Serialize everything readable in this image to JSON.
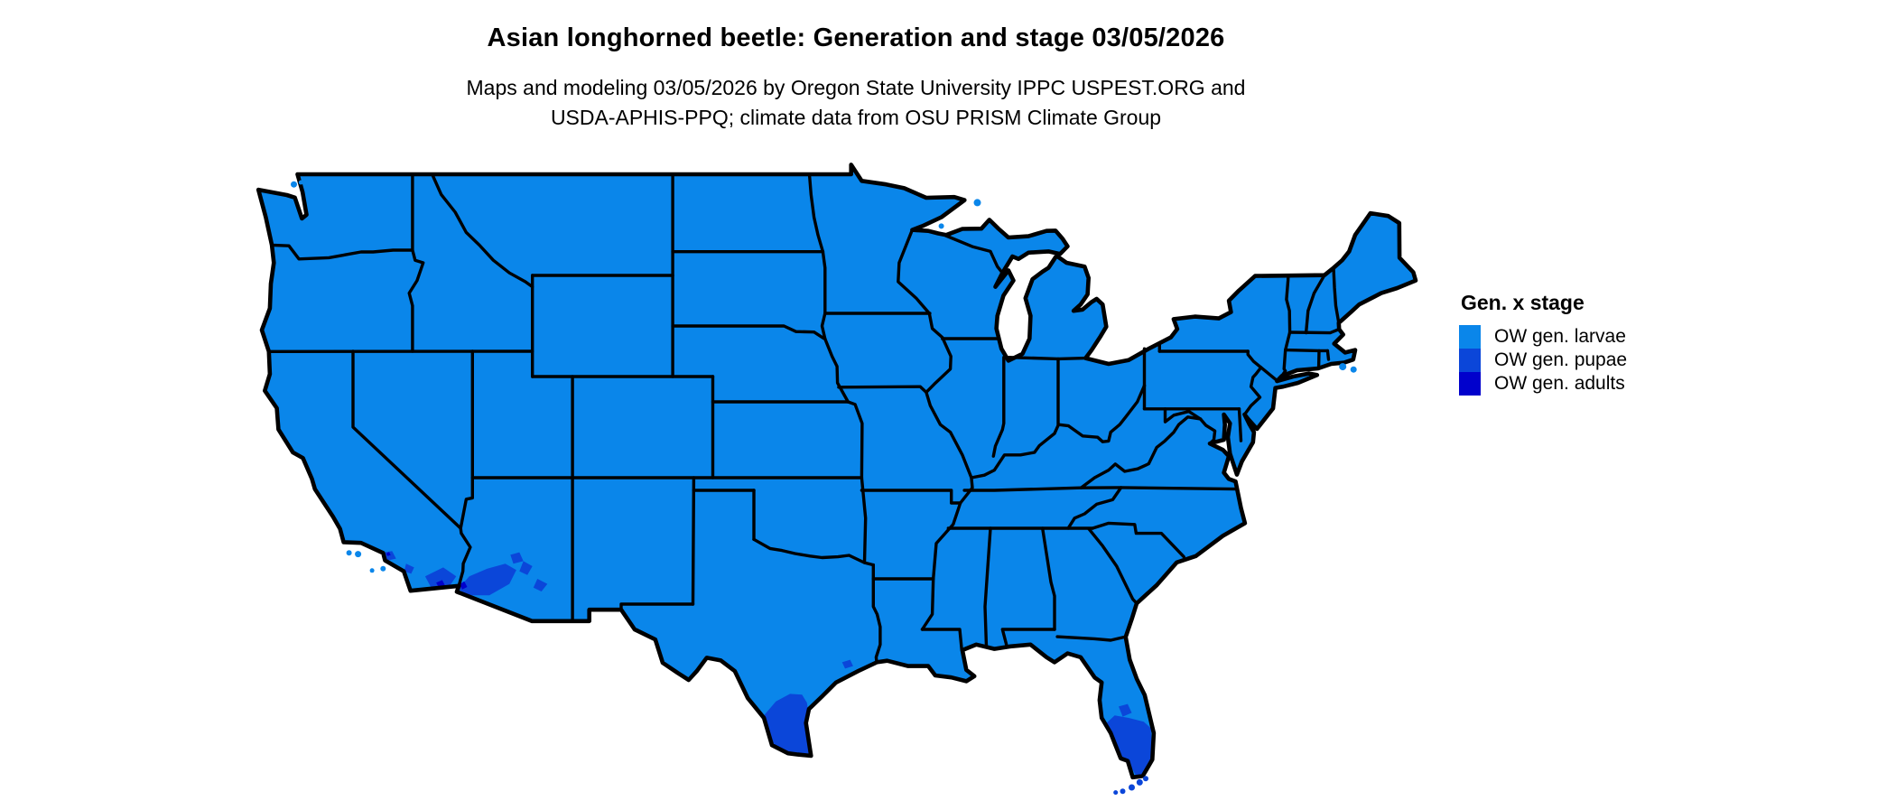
{
  "header": {
    "title": "Asian longhorned beetle: Generation and stage 03/05/2026",
    "subtitle_line1": "Maps and modeling 03/05/2026 by Oregon State University IPPC USPEST.ORG and",
    "subtitle_line2": "USDA-APHIS-PPQ; climate data from OSU PRISM Climate Group"
  },
  "legend": {
    "title": "Gen. x stage",
    "items": [
      {
        "label": "OW gen. larvae",
        "color": "#0a86ea"
      },
      {
        "label": "OW gen. pupae",
        "color": "#0b46d9"
      },
      {
        "label": "OW gen. adults",
        "color": "#0101cc"
      }
    ]
  },
  "map": {
    "region": "Continental United States",
    "colors": {
      "background": "#ffffff",
      "state_border": "#000000",
      "larvae_fill": "#0a86ea",
      "pupae_fill": "#0b46d9",
      "adults_fill": "#0101cc"
    }
  }
}
